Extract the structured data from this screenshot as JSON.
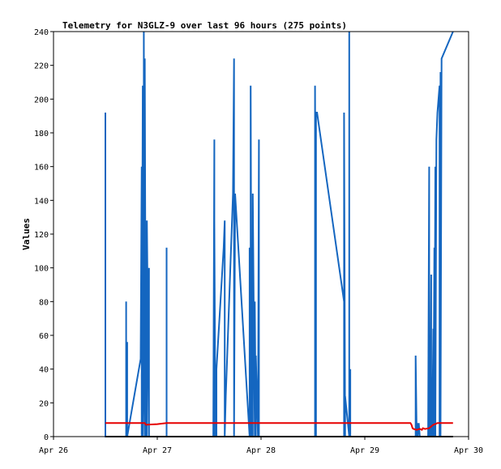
{
  "chart_data": {
    "type": "line",
    "title": "Telemetry for N3GLZ-9 over last 96 hours (275 points)",
    "ylabel": "Values",
    "xlabel": "",
    "x_ticks": [
      "Apr 26",
      "Apr 27",
      "Apr 28",
      "Apr 29",
      "Apr 30"
    ],
    "y_ticks": [
      0,
      20,
      40,
      60,
      80,
      100,
      120,
      140,
      160,
      180,
      200,
      220,
      240
    ],
    "xlim": [
      0,
      4
    ],
    "ylim": [
      0,
      240
    ],
    "x_unit": "days since Apr 26",
    "grid": false,
    "legend": "none",
    "colors": {
      "series1": "#1466c0",
      "series2": "#e60000",
      "series3": "#000000",
      "frame": "#000000"
    },
    "series": [
      {
        "key": "blue",
        "x": [
          0.5,
          0.5,
          0.5,
          0.7,
          0.7,
          0.7,
          0.71,
          0.71,
          0.84,
          0.85,
          0.85,
          0.86,
          0.86,
          0.87,
          0.87,
          0.88,
          0.88,
          0.89,
          0.89,
          0.9,
          0.9,
          0.92,
          0.92,
          0.92,
          1.09,
          1.09,
          1.09,
          1.54,
          1.55,
          1.55,
          1.55,
          1.56,
          1.56,
          1.57,
          1.57,
          1.64,
          1.65,
          1.65,
          1.66,
          1.73,
          1.74,
          1.74,
          1.75,
          1.89,
          1.89,
          1.9,
          1.9,
          1.91,
          1.91,
          1.92,
          1.92,
          1.94,
          1.94,
          1.95,
          1.95,
          1.97,
          1.98,
          1.98,
          2.52,
          2.52,
          2.53,
          2.53,
          2.54,
          2.8,
          2.8,
          2.8,
          2.81,
          2.81,
          2.85,
          2.85,
          2.85,
          2.86,
          2.86,
          3.49,
          3.49,
          3.5,
          3.51,
          3.51,
          3.52,
          3.53,
          3.61,
          3.62,
          3.62,
          3.63,
          3.63,
          3.64,
          3.64,
          3.65,
          3.65,
          3.66,
          3.66,
          3.67,
          3.67,
          3.68,
          3.68,
          3.69,
          3.7,
          3.72,
          3.72,
          3.73,
          3.73,
          3.74,
          3.85
        ],
        "y": [
          0,
          192,
          0,
          0,
          80,
          0,
          56,
          0,
          46,
          160,
          0,
          208,
          0,
          46,
          240,
          0,
          224,
          0,
          40,
          0,
          128,
          0,
          100,
          0,
          0,
          112,
          0,
          0,
          176,
          0,
          128,
          0,
          40,
          0,
          40,
          112,
          128,
          0,
          24,
          144,
          224,
          0,
          144,
          0,
          112,
          0,
          208,
          0,
          96,
          0,
          144,
          0,
          80,
          0,
          48,
          0,
          176,
          0,
          0,
          208,
          0,
          192,
          192,
          80,
          0,
          192,
          0,
          24,
          0,
          240,
          0,
          40,
          0,
          0,
          48,
          0,
          8,
          0,
          8,
          0,
          0,
          160,
          0,
          48,
          0,
          96,
          0,
          24,
          0,
          64,
          0,
          112,
          0,
          160,
          0,
          176,
          192,
          208,
          0,
          216,
          0,
          224,
          240
        ]
      },
      {
        "key": "red",
        "x": [
          0.5,
          0.88,
          0.89,
          1.0,
          1.09,
          1.1,
          3.43,
          3.44,
          3.45,
          3.46,
          3.47,
          3.5,
          3.53,
          3.55,
          3.56,
          3.58,
          3.62,
          3.64,
          3.66,
          3.68,
          3.7,
          3.72,
          3.85
        ],
        "y": [
          8,
          8,
          7,
          7.4,
          8,
          8,
          8,
          8,
          7,
          5,
          4.5,
          4,
          4.6,
          4,
          5,
          4.5,
          5,
          6,
          7,
          7.5,
          8,
          8,
          8
        ]
      },
      {
        "key": "black",
        "x": [
          0.5,
          3.85
        ],
        "y": [
          0,
          0
        ]
      }
    ]
  }
}
